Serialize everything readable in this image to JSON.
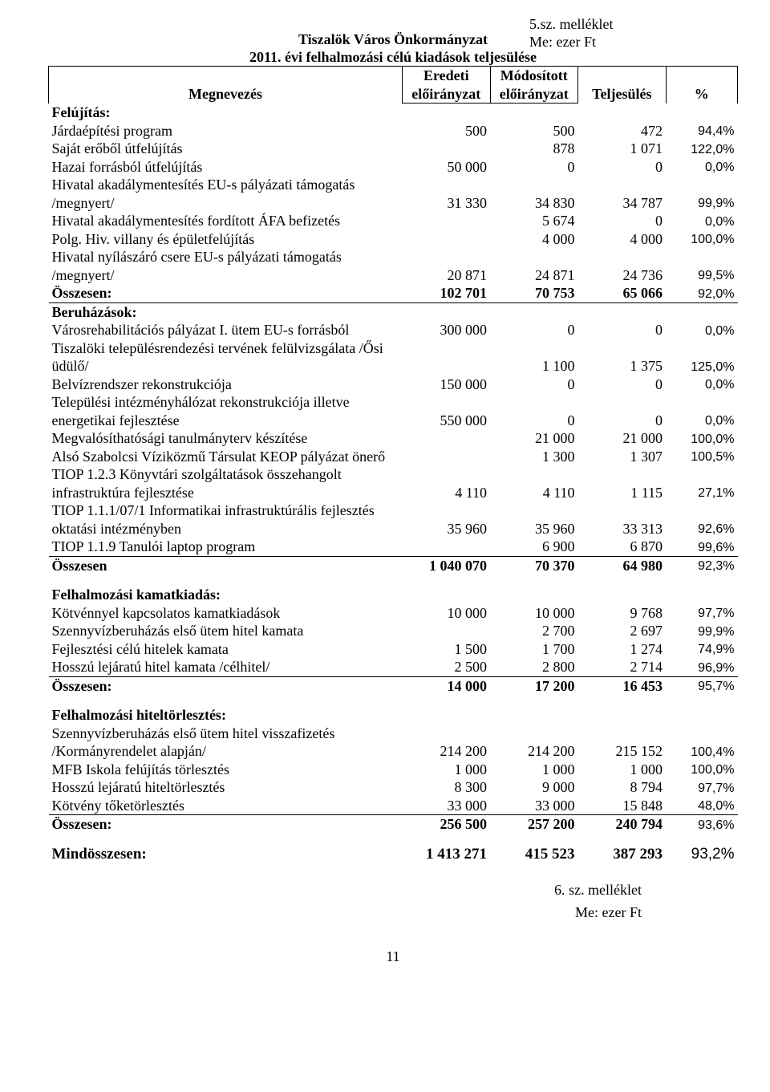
{
  "header": {
    "attachment": "5.sz. melléklet",
    "unit": "Me: ezer Ft",
    "title1": "Tiszalök Város Önkormányzat",
    "title2": "2011. évi felhalmozási célú kiadások teljesülése"
  },
  "columns": {
    "name": "Megnevezés",
    "c1a": "Eredeti",
    "c1b": "előirányzat",
    "c2a": "Módosított",
    "c2b": "előirányzat",
    "c3": "Teljesülés",
    "c4": "%"
  },
  "sections": [
    {
      "title": "Felújítás:",
      "rows": [
        {
          "name": "Járdaépítési program",
          "v": [
            "500",
            "500",
            "472",
            "94,4%"
          ]
        },
        {
          "name": "Saját erőből útfelújítás",
          "v": [
            "",
            "878",
            "1 071",
            "122,0%"
          ]
        },
        {
          "name": "Hazai forrásból útfelújítás",
          "v": [
            "50 000",
            "0",
            "0",
            "0,0%"
          ]
        },
        {
          "name": "Hivatal akadálymentesítés EU-s pályázati támogatás /megnyert/",
          "v": [
            "31 330",
            "34 830",
            "34 787",
            "99,9%"
          ]
        },
        {
          "name": "Hivatal akadálymentesítés fordított ÁFA befizetés",
          "v": [
            "",
            "5 674",
            "0",
            "0,0%"
          ]
        },
        {
          "name": "Polg. Hiv. villany és épületfelújítás",
          "v": [
            "",
            "4 000",
            "4 000",
            "100,0%"
          ]
        },
        {
          "name": "Hivatal nyílászáró csere EU-s pályázati támogatás /megnyert/",
          "v": [
            "20 871",
            "24 871",
            "24 736",
            "99,5%"
          ]
        }
      ],
      "sum": {
        "name": "Összesen:",
        "v": [
          "102 701",
          "70 753",
          "65 066",
          "92,0%"
        ]
      },
      "sum_style": "above"
    },
    {
      "title": "Beruházások:",
      "rows": [
        {
          "name": "Városrehabilitációs pályázat I. ütem EU-s forrásból",
          "v": [
            "300 000",
            "0",
            "0",
            "0,0%"
          ]
        },
        {
          "name": "Tiszalöki településrendezési tervének felülvizsgálata /Ősi üdülő/",
          "v": [
            "",
            "1 100",
            "1 375",
            "125,0%"
          ]
        },
        {
          "name": "Belvízrendszer rekonstrukciója",
          "v": [
            "150 000",
            "0",
            "0",
            "0,0%"
          ]
        },
        {
          "name": "Települési intézményhálózat rekonstrukciója illetve energetikai fejlesztése",
          "v": [
            "550 000",
            "0",
            "0",
            "0,0%"
          ]
        },
        {
          "name": "Megvalósíthatósági tanulmányterv készítése",
          "v": [
            "",
            "21 000",
            "21 000",
            "100,0%"
          ]
        },
        {
          "name": "Alsó Szabolcsi Víziközmű Társulat KEOP pályázat önerő",
          "v": [
            "",
            "1 300",
            "1 307",
            "100,5%"
          ]
        },
        {
          "name": "TIOP 1.2.3 Könyvtári szolgáltatások összehangolt infrastruktúra fejlesztése",
          "v": [
            "4 110",
            "4 110",
            "1 115",
            "27,1%"
          ]
        },
        {
          "name": "TIOP 1.1.1/07/1 Informatikai infrastruktúrális fejlesztés oktatási intézményben",
          "v": [
            "35 960",
            "35 960",
            "33 313",
            "92,6%"
          ]
        },
        {
          "name": "TIOP 1.1.9 Tanulói laptop program",
          "v": [
            "",
            "6 900",
            "6 870",
            "99,6%"
          ]
        }
      ],
      "sum": {
        "name": "Összesen",
        "v": [
          "1 040 070",
          "70 370",
          "64 980",
          "92,3%"
        ]
      },
      "sum_style": "top"
    },
    {
      "title": "Felhalmozási kamatkiadás:",
      "spacer_before": true,
      "rows": [
        {
          "name": "Kötvénnyel kapcsolatos kamatkiadások",
          "v": [
            "10 000",
            "10 000",
            "9 768",
            "97,7%"
          ]
        },
        {
          "name": "Szennyvízberuházás első ütem hitel kamata",
          "v": [
            "",
            "2 700",
            "2 697",
            "99,9%"
          ]
        },
        {
          "name": "Fejlesztési célú hitelek kamata",
          "v": [
            "1 500",
            "1 700",
            "1 274",
            "74,9%"
          ]
        },
        {
          "name": "Hosszú lejáratú hitel kamata /célhitel/",
          "v": [
            "2 500",
            "2 800",
            "2 714",
            "96,9%"
          ]
        }
      ],
      "sum": {
        "name": "Összesen:",
        "v": [
          "14 000",
          "17 200",
          "16 453",
          "95,7%"
        ]
      },
      "sum_style": "top"
    },
    {
      "title": "Felhalmozási hiteltörlesztés:",
      "spacer_before": true,
      "rows": [
        {
          "name": "Szennyvízberuházás első ütem hitel visszafizetés /Kormányrendelet alapján/",
          "v": [
            "214 200",
            "214 200",
            "215 152",
            "100,4%"
          ]
        },
        {
          "name": "MFB Iskola felújítás törlesztés",
          "v": [
            "1 000",
            "1 000",
            "1 000",
            "100,0%"
          ]
        },
        {
          "name": "Hosszú lejáratú hiteltörlesztés",
          "v": [
            "8 300",
            "9 000",
            "8 794",
            "97,7%"
          ]
        },
        {
          "name": "Kötvény tőketörlesztés",
          "v": [
            "33 000",
            "33 000",
            "15 848",
            "48,0%"
          ]
        }
      ],
      "sum": {
        "name": "Összesen:",
        "v": [
          "256 500",
          "257 200",
          "240 794",
          "93,6%"
        ]
      },
      "sum_style": "top"
    }
  ],
  "grand": {
    "name": "Mindösszesen:",
    "v": [
      "1 413 271",
      "415 523",
      "387 293",
      "93,2%"
    ]
  },
  "footer": {
    "attachment": "6. sz. melléklet",
    "unit": "Me: ezer Ft",
    "page": "11"
  }
}
